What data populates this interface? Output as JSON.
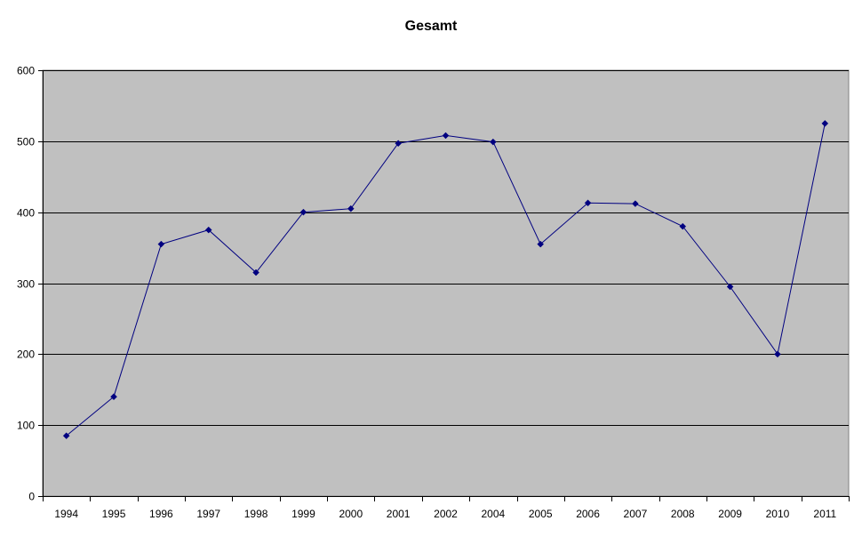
{
  "chart_data": {
    "type": "line",
    "title": "Gesamt",
    "xlabel": "",
    "ylabel": "",
    "categories": [
      "1994",
      "1995",
      "1996",
      "1997",
      "1998",
      "1999",
      "2000",
      "2001",
      "2002",
      "2004",
      "2005",
      "2006",
      "2007",
      "2008",
      "2009",
      "2010",
      "2011"
    ],
    "series": [
      {
        "values": [
          85,
          140,
          355,
          375,
          315,
          400,
          405,
          497,
          508,
          499,
          355,
          413,
          412,
          380,
          295,
          200,
          525
        ]
      }
    ],
    "ylim": [
      0,
      600
    ],
    "yticks": [
      0,
      100,
      200,
      300,
      400,
      500,
      600
    ],
    "grid": true,
    "legend": "none",
    "colors": {
      "plot_background": "#c0c0c0",
      "line": "#000080",
      "gridline": "#000000"
    },
    "marker": "diamond"
  }
}
